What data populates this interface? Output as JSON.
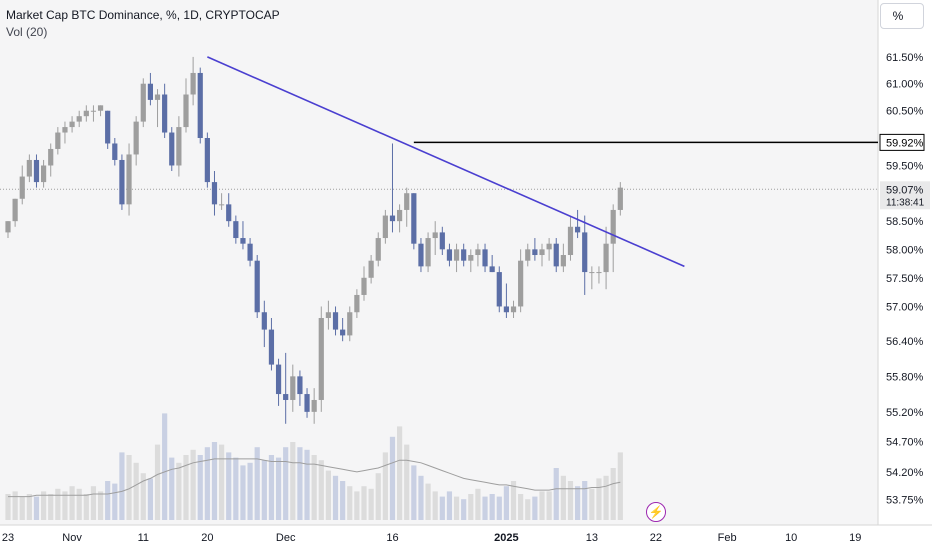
{
  "header": {
    "title": "Market Cap BTC Dominance, %, 1D, CRYPTOCAP",
    "vol_label": "Vol (20)",
    "scale_button": "%"
  },
  "price_axis": {
    "ticks": [
      "61.50%",
      "61.00%",
      "60.50%",
      "59.50%",
      "59.00%",
      "58.50%",
      "58.00%",
      "57.50%",
      "57.00%",
      "56.40%",
      "55.80%",
      "55.20%",
      "54.70%",
      "54.20%",
      "53.75%"
    ],
    "marker_label": "59.92%",
    "current_label": "59.07%",
    "countdown": "11:38:41"
  },
  "time_axis": {
    "ticks": [
      "23",
      "Nov",
      "11",
      "20",
      "Dec",
      "16",
      "2025",
      "13",
      "22",
      "Feb",
      "10",
      "19"
    ]
  },
  "colors": {
    "up": "#9e9e9e",
    "down": "#5b6ea6",
    "trendline": "#4a3fd0",
    "marker": "#000000",
    "vol_up": "#dcdcdc",
    "vol_down": "#c9d0e3",
    "vol_ma": "#9e9e9e"
  },
  "chart_data": {
    "type": "candlestick",
    "title": "Market Cap BTC Dominance, %, 1D, CRYPTOCAP",
    "x_range": [
      "2024-10-23",
      "2025-01-20"
    ],
    "ylim": [
      53.5,
      61.9
    ],
    "candles": [
      [
        58.3,
        58.2,
        58.5,
        58.5
      ],
      [
        58.5,
        58.4,
        58.9,
        58.9
      ],
      [
        58.9,
        58.8,
        59.5,
        59.3
      ],
      [
        59.3,
        59.2,
        59.7,
        59.6
      ],
      [
        59.6,
        59.1,
        59.7,
        59.2
      ],
      [
        59.2,
        59.1,
        59.6,
        59.5
      ],
      [
        59.5,
        59.3,
        59.9,
        59.8
      ],
      [
        59.8,
        59.7,
        60.2,
        60.1
      ],
      [
        60.1,
        59.9,
        60.3,
        60.2
      ],
      [
        60.2,
        60.1,
        60.4,
        60.3
      ],
      [
        60.3,
        60.2,
        60.5,
        60.4
      ],
      [
        60.4,
        60.3,
        60.6,
        60.5
      ],
      [
        60.5,
        60.3,
        60.6,
        60.5
      ],
      [
        60.5,
        60.4,
        60.6,
        60.6
      ],
      [
        60.5,
        59.8,
        60.5,
        59.9
      ],
      [
        59.9,
        59.5,
        60.0,
        59.6
      ],
      [
        59.6,
        58.7,
        59.7,
        58.8
      ],
      [
        58.8,
        58.6,
        59.9,
        59.7
      ],
      [
        59.7,
        59.5,
        60.4,
        60.3
      ],
      [
        60.3,
        60.2,
        61.1,
        61.0
      ],
      [
        61.0,
        60.6,
        61.2,
        60.7
      ],
      [
        60.7,
        60.2,
        60.9,
        60.8
      ],
      [
        60.8,
        60.0,
        61.0,
        60.1
      ],
      [
        60.1,
        59.4,
        60.2,
        59.5
      ],
      [
        59.5,
        59.3,
        60.4,
        60.2
      ],
      [
        60.2,
        60.1,
        61.1,
        60.8
      ],
      [
        60.8,
        60.6,
        61.5,
        61.2
      ],
      [
        61.2,
        59.9,
        61.3,
        60.0
      ],
      [
        60.0,
        59.1,
        60.1,
        59.2
      ],
      [
        59.2,
        58.6,
        59.4,
        58.8
      ],
      [
        58.8,
        58.7,
        59.0,
        58.8
      ],
      [
        58.8,
        58.4,
        59.0,
        58.5
      ],
      [
        58.5,
        58.1,
        58.6,
        58.2
      ],
      [
        58.2,
        58.0,
        58.5,
        58.1
      ],
      [
        58.1,
        57.7,
        58.2,
        57.8
      ],
      [
        57.8,
        56.8,
        57.9,
        56.9
      ],
      [
        56.9,
        56.3,
        57.1,
        56.6
      ],
      [
        56.6,
        55.9,
        56.8,
        56.0
      ],
      [
        56.0,
        55.3,
        56.1,
        55.5
      ],
      [
        55.5,
        55.0,
        56.2,
        55.4
      ],
      [
        55.4,
        55.2,
        56.0,
        55.8
      ],
      [
        55.8,
        55.3,
        55.9,
        55.5
      ],
      [
        55.5,
        55.1,
        55.6,
        55.2
      ],
      [
        55.2,
        55.0,
        55.6,
        55.4
      ],
      [
        55.4,
        55.2,
        57.0,
        56.8
      ],
      [
        56.8,
        56.6,
        57.1,
        56.9
      ],
      [
        56.9,
        56.5,
        57.0,
        56.6
      ],
      [
        56.6,
        56.4,
        56.8,
        56.5
      ],
      [
        56.5,
        56.4,
        57.0,
        56.9
      ],
      [
        56.9,
        56.8,
        57.3,
        57.2
      ],
      [
        57.2,
        57.1,
        57.7,
        57.5
      ],
      [
        57.5,
        57.4,
        57.9,
        57.8
      ],
      [
        57.8,
        57.7,
        58.3,
        58.2
      ],
      [
        58.2,
        58.1,
        58.7,
        58.6
      ],
      [
        58.6,
        58.3,
        59.9,
        58.5
      ],
      [
        58.5,
        58.3,
        58.8,
        58.7
      ],
      [
        58.7,
        58.4,
        59.1,
        59.0
      ],
      [
        59.0,
        58.0,
        59.0,
        58.1
      ],
      [
        58.1,
        57.6,
        58.2,
        57.7
      ],
      [
        57.7,
        57.6,
        58.3,
        58.2
      ],
      [
        58.2,
        57.9,
        58.5,
        58.3
      ],
      [
        58.3,
        57.9,
        58.4,
        58.0
      ],
      [
        58.0,
        57.7,
        58.1,
        57.8
      ],
      [
        57.8,
        57.6,
        58.1,
        58.0
      ],
      [
        58.0,
        57.7,
        58.1,
        57.8
      ],
      [
        57.8,
        57.6,
        58.0,
        57.9
      ],
      [
        57.9,
        57.7,
        58.1,
        58.0
      ],
      [
        58.0,
        57.6,
        58.1,
        57.7
      ],
      [
        57.7,
        57.6,
        57.9,
        57.6
      ],
      [
        57.6,
        56.9,
        57.7,
        57.0
      ],
      [
        57.0,
        56.8,
        57.4,
        56.9
      ],
      [
        56.9,
        56.8,
        57.1,
        57.0
      ],
      [
        57.0,
        56.9,
        58.0,
        57.8
      ],
      [
        57.8,
        57.7,
        58.1,
        58.0
      ],
      [
        58.0,
        57.8,
        58.2,
        57.9
      ],
      [
        57.9,
        57.7,
        58.1,
        58.0
      ],
      [
        58.0,
        57.8,
        58.2,
        58.1
      ],
      [
        58.1,
        57.6,
        58.2,
        57.7
      ],
      [
        57.7,
        57.6,
        58.1,
        57.9
      ],
      [
        57.9,
        57.8,
        58.6,
        58.4
      ],
      [
        58.4,
        58.2,
        58.7,
        58.3
      ],
      [
        58.3,
        57.2,
        58.6,
        57.6
      ],
      [
        57.6,
        57.3,
        57.7,
        57.6
      ],
      [
        57.6,
        57.4,
        57.7,
        57.6
      ],
      [
        57.6,
        57.3,
        58.4,
        58.1
      ],
      [
        58.1,
        57.6,
        58.8,
        58.7
      ],
      [
        58.7,
        58.6,
        59.2,
        59.1
      ]
    ],
    "volume_relative": [
      0.2,
      0.22,
      0.18,
      0.2,
      0.18,
      0.22,
      0.2,
      0.24,
      0.22,
      0.26,
      0.24,
      0.2,
      0.26,
      0.22,
      0.3,
      0.28,
      0.52,
      0.5,
      0.44,
      0.36,
      0.32,
      0.58,
      0.82,
      0.48,
      0.44,
      0.5,
      0.54,
      0.5,
      0.56,
      0.6,
      0.58,
      0.52,
      0.48,
      0.42,
      0.44,
      0.56,
      0.46,
      0.5,
      0.48,
      0.56,
      0.6,
      0.56,
      0.54,
      0.5,
      0.46,
      0.38,
      0.34,
      0.3,
      0.26,
      0.22,
      0.26,
      0.24,
      0.36,
      0.52,
      0.64,
      0.72,
      0.58,
      0.42,
      0.34,
      0.28,
      0.22,
      0.18,
      0.22,
      0.18,
      0.16,
      0.2,
      0.24,
      0.18,
      0.2,
      0.18,
      0.26,
      0.3,
      0.2,
      0.16,
      0.18,
      0.22,
      0.22,
      0.4,
      0.34,
      0.3,
      0.26,
      0.3,
      0.24,
      0.32,
      0.34,
      0.4,
      0.52
    ],
    "volume_ma_relative": [
      0.18,
      0.18,
      0.18,
      0.18,
      0.19,
      0.19,
      0.19,
      0.19,
      0.19,
      0.19,
      0.19,
      0.19,
      0.2,
      0.2,
      0.2,
      0.21,
      0.22,
      0.24,
      0.27,
      0.3,
      0.32,
      0.35,
      0.37,
      0.39,
      0.4,
      0.42,
      0.44,
      0.45,
      0.46,
      0.47,
      0.47,
      0.47,
      0.47,
      0.47,
      0.47,
      0.47,
      0.46,
      0.45,
      0.45,
      0.45,
      0.44,
      0.44,
      0.43,
      0.43,
      0.42,
      0.41,
      0.4,
      0.39,
      0.38,
      0.37,
      0.38,
      0.39,
      0.4,
      0.42,
      0.44,
      0.46,
      0.46,
      0.45,
      0.44,
      0.42,
      0.4,
      0.38,
      0.36,
      0.34,
      0.32,
      0.31,
      0.3,
      0.29,
      0.28,
      0.27,
      0.27,
      0.26,
      0.25,
      0.24,
      0.23,
      0.23,
      0.23,
      0.24,
      0.24,
      0.24,
      0.24,
      0.24,
      0.25,
      0.25,
      0.26,
      0.28,
      0.29
    ],
    "trendline": {
      "from": [
        "2024-11-20",
        61.5
      ],
      "to": [
        "2025-01-26",
        57.7
      ]
    },
    "horizontal_level": 59.92,
    "current_value": 59.07
  }
}
